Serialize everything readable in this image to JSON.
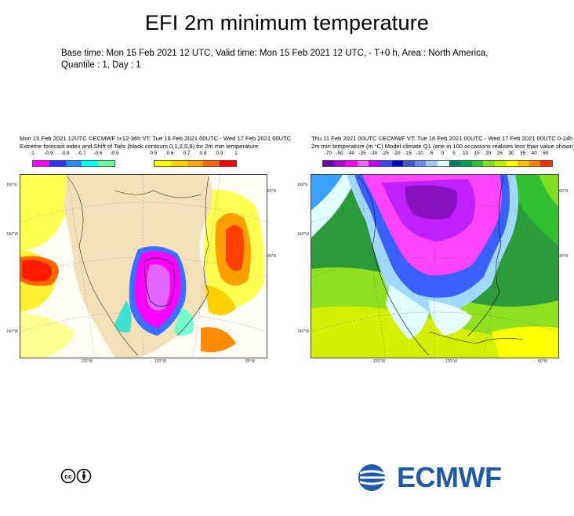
{
  "title": "EFI 2m minimum temperature",
  "subtitle": "Base time: Mon 15 Feb 2021 12 UTC, Valid time: Mon 15 Feb 2021 12 UTC, - T+0 h, Area : North America, Quantile : 1, Day : 1",
  "left_panel": {
    "header_line1": "Mon 15 Feb 2021 12UTC ©ECMWF t+12-36h  VT: Tue 16 Feb 2021 00UTC - Wed 17 Feb 2021 00UTC",
    "header_line2": "Extreme forecast index and Shift of Tails (black contours 0,1,2,5,8) for 2m min temperature",
    "colorbar": {
      "labels_neg": [
        "-1",
        "-0.9",
        "-0.8",
        "-0.7",
        "-0.6",
        "-0.5"
      ],
      "labels_pos": [
        "0.5",
        "0.6",
        "0.7",
        "0.8",
        "0.9",
        "1"
      ],
      "colors_neg": [
        "#ff00ff",
        "#3030ff",
        "#1e90ff",
        "#00ffff",
        "#66ff99"
      ],
      "colors_pos": [
        "#ffff00",
        "#ffd000",
        "#ffa500",
        "#ff6600",
        "#ff0000"
      ]
    },
    "axis_labels": {
      "lon": [
        "120°W",
        "100°W",
        "80°W"
      ],
      "lat": [
        "160°E",
        "160°W",
        "140°W",
        "60°N",
        "40°N"
      ]
    }
  },
  "right_panel": {
    "header_line1": "Thu 11 Feb 2021 00UTC ©ECMWF VT: Tue 16 Feb 2021 00UTC - Wed 17 Feb 2021 00UTC  0-24h",
    "header_line2": "2m min temperature (in °C)  Model climate Q1 (one in 100 occasions realises less than value shown)",
    "colorbar": {
      "labels": [
        "-70",
        "-50",
        "-40",
        "-35",
        "-30",
        "-25",
        "-20",
        "-15",
        "-10",
        "-5",
        "0",
        "5",
        "10",
        "15",
        "20",
        "25",
        "30",
        "35",
        "40",
        "50"
      ],
      "colors": [
        "#6a00a8",
        "#b000d0",
        "#ff00ff",
        "#ff66ff",
        "#c000ff",
        "#4040ff",
        "#0000c8",
        "#3a5fcd",
        "#6a8cff",
        "#a0c8ff",
        "#e0ffff",
        "#008060",
        "#00a050",
        "#30c030",
        "#80e020",
        "#c0f000",
        "#ffff00",
        "#ffc000",
        "#ff8000",
        "#ff3000"
      ]
    },
    "axis_labels": {
      "lon": [
        "120°W",
        "100°W",
        "80°W"
      ],
      "lat": [
        "160°E",
        "160°W",
        "140°W",
        "60°N",
        "40°N"
      ]
    }
  },
  "footer": {
    "license_icon": "creative-commons-by-icon",
    "logo_text": "ECMWF"
  }
}
